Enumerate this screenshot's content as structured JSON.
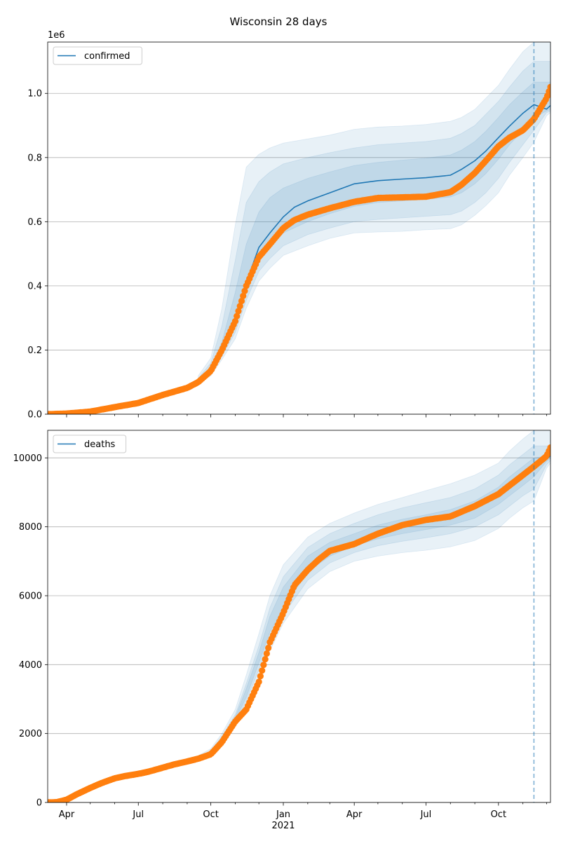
{
  "title": "Wisconsin 28 days",
  "colors": {
    "model": "#1f77b4",
    "observed": "#ff7f0e",
    "band": "#1f77b4",
    "grid": "#b0b0b0",
    "cutoff": "#1f77b4"
  },
  "x_axis": {
    "start": "2020-03-08",
    "end": "2021-12-06",
    "ticks": [
      {
        "date": "2020-04-01",
        "label": "Apr"
      },
      {
        "date": "2020-07-01",
        "label": "Jul"
      },
      {
        "date": "2020-10-01",
        "label": "Oct"
      },
      {
        "date": "2021-01-01",
        "label": "Jan"
      },
      {
        "date": "2021-04-01",
        "label": "Apr"
      },
      {
        "date": "2021-07-01",
        "label": "Jul"
      },
      {
        "date": "2021-10-01",
        "label": "Oct"
      }
    ],
    "year_label": "2021",
    "cutoff_date": "2021-11-15"
  },
  "chart_data": [
    {
      "type": "line",
      "name": "confirmed",
      "legend": "confirmed",
      "legend_position": "top-left",
      "grid": true,
      "ylim": [
        0,
        1160000
      ],
      "offset_label": "1e6",
      "yticks": [
        {
          "value": 0,
          "label": "0.0"
        },
        {
          "value": 200000,
          "label": "0.2"
        },
        {
          "value": 400000,
          "label": "0.4"
        },
        {
          "value": 600000,
          "label": "0.6"
        },
        {
          "value": 800000,
          "label": "0.8"
        },
        {
          "value": 1000000,
          "label": "1.0"
        }
      ],
      "model": {
        "x": [
          "2020-09-15",
          "2020-10-01",
          "2020-10-15",
          "2020-11-01",
          "2020-11-15",
          "2020-12-01",
          "2020-12-15",
          "2021-01-01",
          "2021-01-15",
          "2021-02-01",
          "2021-03-01",
          "2021-04-01",
          "2021-05-01",
          "2021-06-01",
          "2021-07-01",
          "2021-08-01",
          "2021-08-15",
          "2021-09-01",
          "2021-09-15",
          "2021-10-01",
          "2021-10-15",
          "2021-11-01",
          "2021-11-15",
          "2021-12-01",
          "2021-12-06"
        ],
        "y": [
          100000,
          135000,
          200000,
          290000,
          410000,
          520000,
          565000,
          615000,
          645000,
          665000,
          690000,
          718000,
          728000,
          733000,
          737000,
          745000,
          763000,
          790000,
          820000,
          862000,
          898000,
          938000,
          965000,
          951000,
          962000
        ]
      },
      "bands": [
        {
          "x": [
            "2020-09-15",
            "2020-10-01",
            "2020-10-15",
            "2020-11-01",
            "2020-11-15",
            "2020-12-01",
            "2020-12-15",
            "2021-01-01",
            "2021-02-01",
            "2021-03-01",
            "2021-04-01",
            "2021-05-01",
            "2021-06-01",
            "2021-07-01",
            "2021-08-01",
            "2021-08-15",
            "2021-09-01",
            "2021-09-15",
            "2021-10-01",
            "2021-10-15",
            "2021-11-01",
            "2021-11-15",
            "2021-12-01",
            "2021-12-06"
          ],
          "low": [
            95000,
            120000,
            170000,
            235000,
            330000,
            415000,
            455000,
            495000,
            525000,
            548000,
            565000,
            568000,
            570000,
            575000,
            578000,
            590000,
            620000,
            650000,
            690000,
            745000,
            800000,
            848000,
            930000,
            940000
          ],
          "high": [
            120000,
            175000,
            330000,
            590000,
            770000,
            810000,
            830000,
            845000,
            858000,
            870000,
            888000,
            895000,
            898000,
            903000,
            913000,
            925000,
            950000,
            985000,
            1025000,
            1075000,
            1130000,
            1160000,
            1160000,
            1160000
          ]
        },
        {
          "x": [
            "2020-09-15",
            "2020-10-01",
            "2020-10-15",
            "2020-11-01",
            "2020-11-15",
            "2020-12-01",
            "2020-12-15",
            "2021-01-01",
            "2021-02-01",
            "2021-03-01",
            "2021-04-01",
            "2021-05-01",
            "2021-06-01",
            "2021-07-01",
            "2021-08-01",
            "2021-08-15",
            "2021-09-01",
            "2021-09-15",
            "2021-10-01",
            "2021-10-15",
            "2021-11-01",
            "2021-11-15",
            "2021-12-01",
            "2021-12-06"
          ],
          "low": [
            97000,
            125000,
            180000,
            255000,
            355000,
            445000,
            485000,
            525000,
            560000,
            580000,
            600000,
            607000,
            612000,
            617000,
            622000,
            633000,
            660000,
            690000,
            735000,
            785000,
            840000,
            885000,
            940000,
            945000
          ],
          "high": [
            112000,
            160000,
            275000,
            480000,
            660000,
            725000,
            755000,
            780000,
            800000,
            815000,
            830000,
            840000,
            845000,
            850000,
            860000,
            875000,
            900000,
            935000,
            975000,
            1020000,
            1070000,
            1100000,
            1100000,
            1100000
          ]
        },
        {
          "x": [
            "2020-09-15",
            "2020-10-01",
            "2020-10-15",
            "2020-11-01",
            "2020-11-15",
            "2020-12-01",
            "2020-12-15",
            "2021-01-01",
            "2021-02-01",
            "2021-03-01",
            "2021-04-01",
            "2021-05-01",
            "2021-06-01",
            "2021-07-01",
            "2021-08-01",
            "2021-08-15",
            "2021-09-01",
            "2021-09-15",
            "2021-10-01",
            "2021-10-15",
            "2021-11-01",
            "2021-11-15",
            "2021-12-01",
            "2021-12-06"
          ],
          "low": [
            99000,
            130000,
            192000,
            275000,
            385000,
            480000,
            520000,
            565000,
            600000,
            625000,
            648000,
            660000,
            665000,
            670000,
            677000,
            690000,
            718000,
            750000,
            795000,
            840000,
            885000,
            925000,
            945000,
            950000
          ],
          "high": [
            105000,
            145000,
            225000,
            380000,
            530000,
            630000,
            675000,
            705000,
            735000,
            755000,
            775000,
            785000,
            792000,
            798000,
            808000,
            823000,
            850000,
            882000,
            925000,
            965000,
            1005000,
            1035000,
            1035000,
            1035000
          ]
        }
      ],
      "observed": {
        "x": [
          "2020-03-08",
          "2020-04-01",
          "2020-05-01",
          "2020-06-01",
          "2020-07-01",
          "2020-08-01",
          "2020-09-01",
          "2020-09-15",
          "2020-10-01",
          "2020-10-15",
          "2020-11-01",
          "2020-11-15",
          "2020-12-01",
          "2020-12-15",
          "2021-01-01",
          "2021-01-15",
          "2021-02-01",
          "2021-03-01",
          "2021-04-01",
          "2021-05-01",
          "2021-06-01",
          "2021-07-01",
          "2021-08-01",
          "2021-08-15",
          "2021-09-01",
          "2021-09-15",
          "2021-10-01",
          "2021-10-15",
          "2021-11-01",
          "2021-11-15",
          "2021-12-01",
          "2021-12-06"
        ],
        "y": [
          0,
          2000,
          8000,
          22000,
          35000,
          60000,
          82000,
          100000,
          135000,
          200000,
          290000,
          400000,
          490000,
          530000,
          580000,
          605000,
          622000,
          642000,
          662000,
          674000,
          676000,
          678000,
          692000,
          715000,
          752000,
          790000,
          835000,
          862000,
          885000,
          920000,
          985000,
          1020000
        ]
      }
    },
    {
      "type": "line",
      "name": "deaths",
      "legend": "deaths",
      "legend_position": "top-left",
      "grid": true,
      "ylim": [
        0,
        10800
      ],
      "yticks": [
        {
          "value": 0,
          "label": "0"
        },
        {
          "value": 2000,
          "label": "2000"
        },
        {
          "value": 4000,
          "label": "4000"
        },
        {
          "value": 6000,
          "label": "6000"
        },
        {
          "value": 8000,
          "label": "8000"
        },
        {
          "value": 10000,
          "label": "10000"
        }
      ],
      "model": {
        "x": [
          "2021-11-15",
          "2021-12-01",
          "2021-12-06"
        ],
        "y": [
          9780,
          9980,
          10060
        ]
      },
      "bands": [
        {
          "x": [
            "2020-09-15",
            "2020-10-01",
            "2020-10-15",
            "2020-11-01",
            "2020-11-15",
            "2020-12-01",
            "2020-12-15",
            "2021-01-01",
            "2021-02-01",
            "2021-03-01",
            "2021-04-01",
            "2021-05-01",
            "2021-06-01",
            "2021-07-01",
            "2021-08-01",
            "2021-09-01",
            "2021-10-01",
            "2021-10-15",
            "2021-11-01",
            "2021-11-15",
            "2021-12-01",
            "2021-12-06"
          ],
          "low": [
            1240,
            1340,
            1700,
            2200,
            2800,
            3600,
            4400,
            5200,
            6200,
            6700,
            7000,
            7150,
            7250,
            7320,
            7420,
            7600,
            7950,
            8250,
            8550,
            8750,
            9700,
            9850
          ],
          "high": [
            1360,
            1560,
            2000,
            2700,
            3700,
            4900,
            6000,
            6900,
            7700,
            8100,
            8400,
            8650,
            8850,
            9050,
            9250,
            9500,
            9850,
            10200,
            10550,
            10800,
            10800,
            10800
          ]
        },
        {
          "x": [
            "2020-09-15",
            "2020-10-01",
            "2020-10-15",
            "2020-11-01",
            "2020-11-15",
            "2020-12-01",
            "2020-12-15",
            "2021-01-01",
            "2021-02-01",
            "2021-03-01",
            "2021-04-01",
            "2021-05-01",
            "2021-06-01",
            "2021-07-01",
            "2021-08-01",
            "2021-09-01",
            "2021-10-01",
            "2021-10-15",
            "2021-11-01",
            "2021-11-15",
            "2021-12-01",
            "2021-12-06"
          ],
          "low": [
            1270,
            1400,
            1760,
            2300,
            2950,
            3850,
            4700,
            5450,
            6450,
            6950,
            7250,
            7450,
            7580,
            7680,
            7800,
            8000,
            8350,
            8600,
            8900,
            9100,
            9800,
            9920
          ],
          "high": [
            1330,
            1500,
            1920,
            2550,
            3450,
            4550,
            5650,
            6550,
            7400,
            7800,
            8100,
            8350,
            8550,
            8700,
            8850,
            9100,
            9500,
            9800,
            10100,
            10350,
            10350,
            10350
          ]
        },
        {
          "x": [
            "2020-09-15",
            "2020-10-01",
            "2020-10-15",
            "2020-11-01",
            "2020-11-15",
            "2020-12-01",
            "2020-12-15",
            "2021-01-01",
            "2021-02-01",
            "2021-03-01",
            "2021-04-01",
            "2021-05-01",
            "2021-06-01",
            "2021-07-01",
            "2021-08-01",
            "2021-09-01",
            "2021-10-01",
            "2021-10-15",
            "2021-11-01",
            "2021-11-15",
            "2021-12-01",
            "2021-12-06"
          ],
          "low": [
            1290,
            1440,
            1820,
            2400,
            3050,
            4050,
            4950,
            5650,
            6700,
            7150,
            7450,
            7650,
            7800,
            7920,
            8050,
            8250,
            8650,
            8900,
            9200,
            9450,
            9900,
            9980
          ],
          "high": [
            1310,
            1470,
            1870,
            2480,
            3300,
            4350,
            5400,
            6250,
            7150,
            7550,
            7800,
            8050,
            8220,
            8350,
            8500,
            8750,
            9150,
            9450,
            9750,
            10000,
            10050,
            10150
          ]
        }
      ],
      "observed": {
        "x": [
          "2020-03-08",
          "2020-03-20",
          "2020-04-01",
          "2020-04-15",
          "2020-05-01",
          "2020-05-15",
          "2020-06-01",
          "2020-06-15",
          "2020-07-01",
          "2020-07-15",
          "2020-08-01",
          "2020-08-15",
          "2020-09-01",
          "2020-09-15",
          "2020-10-01",
          "2020-10-15",
          "2020-11-01",
          "2020-11-15",
          "2020-12-01",
          "2020-12-15",
          "2021-01-01",
          "2021-01-15",
          "2021-02-01",
          "2021-02-15",
          "2021-03-01",
          "2021-04-01",
          "2021-05-01",
          "2021-06-01",
          "2021-07-01",
          "2021-08-01",
          "2021-09-01",
          "2021-10-01",
          "2021-10-15",
          "2021-11-01",
          "2021-11-15",
          "2021-12-01",
          "2021-12-06"
        ],
        "y": [
          0,
          10,
          80,
          250,
          420,
          560,
          700,
          770,
          830,
          900,
          1010,
          1100,
          1190,
          1270,
          1400,
          1750,
          2350,
          2700,
          3500,
          4650,
          5500,
          6300,
          6750,
          7050,
          7300,
          7500,
          7800,
          8050,
          8200,
          8300,
          8600,
          8950,
          9200,
          9500,
          9750,
          10050,
          10300
        ]
      }
    }
  ]
}
